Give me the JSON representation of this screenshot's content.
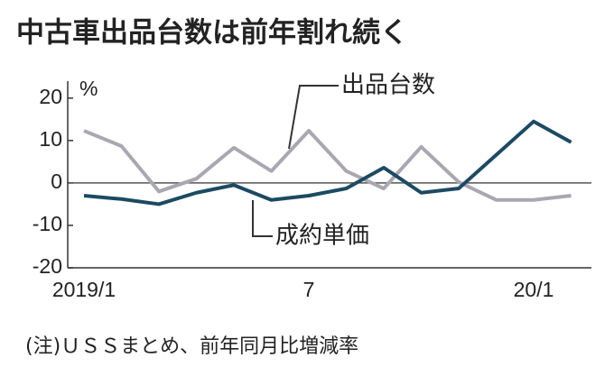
{
  "chart_data": {
    "type": "line",
    "title": "中古車出品台数は前年割れ続く",
    "unit": "%",
    "note": "(注)ＵＳＳまとめ、前年同月比増減率",
    "categories": [
      "2019/1",
      null,
      null,
      null,
      null,
      null,
      "7",
      null,
      null,
      null,
      null,
      null,
      "20/1",
      null
    ],
    "series": [
      {
        "name": "出品台数",
        "color": "#aaa7b1",
        "values": [
          12.3,
          8.7,
          -2,
          1,
          8.3,
          2.8,
          12.3,
          2.8,
          -1.3,
          8.5,
          0.2,
          -4,
          -4,
          -3
        ]
      },
      {
        "name": "成約単価",
        "color": "#1c4a63",
        "values": [
          -3,
          -3.8,
          -5,
          -2.3,
          -0.5,
          -4,
          -3,
          -1.3,
          3.6,
          -2.3,
          -1.3,
          6.6,
          14.5,
          9.6
        ]
      }
    ],
    "ylim": [
      -20,
      24
    ],
    "yticks": [
      -20,
      -10,
      0,
      10,
      20
    ]
  }
}
